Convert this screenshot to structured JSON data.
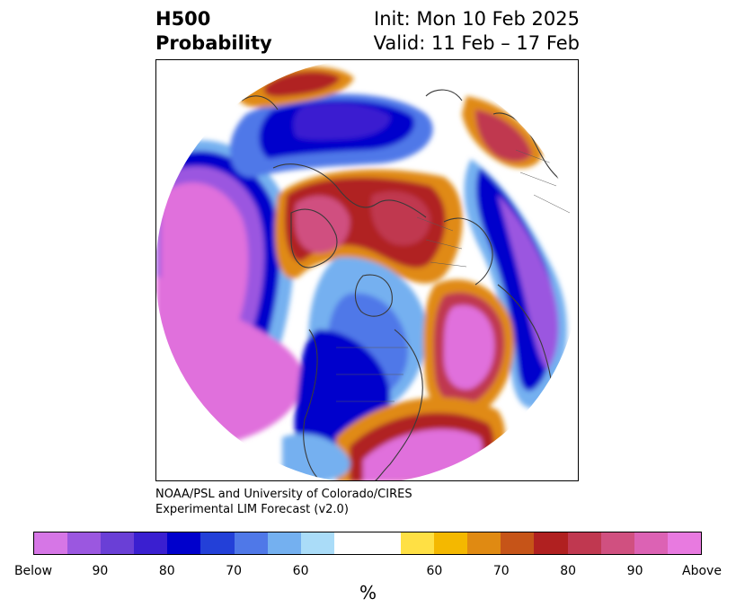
{
  "header": {
    "variable": "H500",
    "product": "Probability",
    "init": "Init: Mon 10 Feb 2025",
    "valid": "Valid: 11 Feb – 17 Feb"
  },
  "credit": {
    "line1": "NOAA/PSL and University of Colorado/CIRES",
    "line2": "Experimental LIM Forecast (v2.0)"
  },
  "colorbar": {
    "colors": [
      "#d676e6",
      "#9b57e0",
      "#6a3fd6",
      "#3a1fd0",
      "#0000cc",
      "#2340d8",
      "#4f78e8",
      "#74b0f0",
      "#aadcf8",
      "#ffffff",
      "#ffffff",
      "#ffe044",
      "#f4b800",
      "#e08a12",
      "#c65418",
      "#b02020",
      "#c03850",
      "#d05080",
      "#dc62b4",
      "#e87ae0"
    ],
    "tick_labels": [
      "Below",
      "90",
      "80",
      "70",
      "60",
      "60",
      "70",
      "80",
      "90",
      "Above"
    ],
    "unit": "%"
  },
  "map": {
    "projection": "north-polar-stereographic",
    "below_colors": {
      "strong": "#e070dc",
      "mid": "#9b57e0",
      "deep": "#0000cc",
      "light": "#74b0f0"
    },
    "above_colors": {
      "strong": "#e070dc",
      "warm": "#b02020",
      "orange": "#e08a12",
      "yellow": "#ffe044"
    }
  }
}
